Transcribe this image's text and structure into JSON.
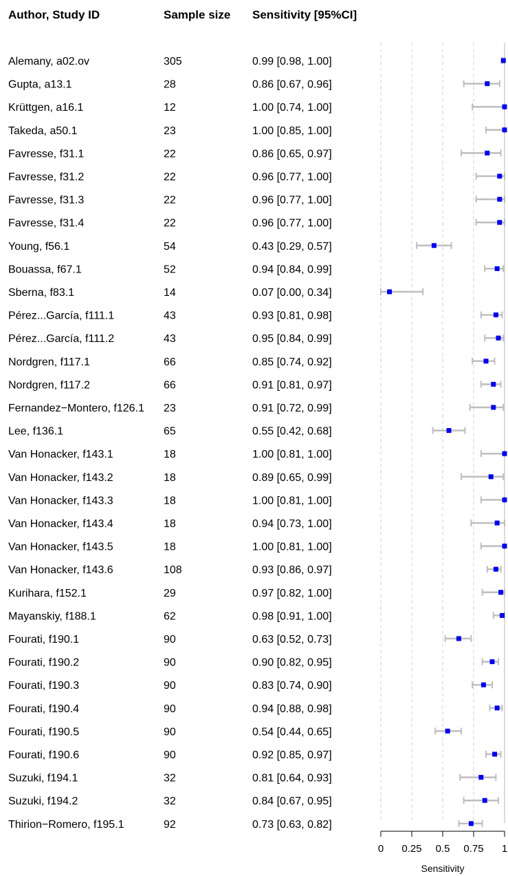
{
  "chart_data": {
    "type": "forest",
    "headers": {
      "study": "Author, Study ID",
      "n": "Sample size",
      "estimate": "Sensitivity [95%CI]"
    },
    "xlabel": "Sensitivity",
    "xlim": [
      0,
      1
    ],
    "xticks": [
      0,
      0.25,
      0.5,
      0.75,
      1
    ],
    "xtick_labels": [
      "0",
      "0.25",
      "0.5",
      "0.75",
      "1"
    ],
    "grid": "dashed vertical at ticks",
    "colors": {
      "point": "#0000ee",
      "ci": "#bebebe",
      "grid": "#d3d3d3"
    },
    "rows": [
      {
        "study": "Alemany, a02.ov",
        "n": "305",
        "label": "0.99 [0.98, 1.00]",
        "est": 0.99,
        "lo": 0.98,
        "hi": 1.0
      },
      {
        "study": "Gupta, a13.1",
        "n": "28",
        "label": "0.86 [0.67, 0.96]",
        "est": 0.86,
        "lo": 0.67,
        "hi": 0.96
      },
      {
        "study": "Krüttgen, a16.1",
        "n": "12",
        "label": "1.00 [0.74, 1.00]",
        "est": 1.0,
        "lo": 0.74,
        "hi": 1.0
      },
      {
        "study": "Takeda, a50.1",
        "n": "23",
        "label": "1.00 [0.85, 1.00]",
        "est": 1.0,
        "lo": 0.85,
        "hi": 1.0
      },
      {
        "study": "Favresse, f31.1",
        "n": "22",
        "label": "0.86 [0.65, 0.97]",
        "est": 0.86,
        "lo": 0.65,
        "hi": 0.97
      },
      {
        "study": "Favresse, f31.2",
        "n": "22",
        "label": "0.96 [0.77, 1.00]",
        "est": 0.96,
        "lo": 0.77,
        "hi": 1.0
      },
      {
        "study": "Favresse, f31.3",
        "n": "22",
        "label": "0.96 [0.77, 1.00]",
        "est": 0.96,
        "lo": 0.77,
        "hi": 1.0
      },
      {
        "study": "Favresse, f31.4",
        "n": "22",
        "label": "0.96 [0.77, 1.00]",
        "est": 0.96,
        "lo": 0.77,
        "hi": 1.0
      },
      {
        "study": "Young, f56.1",
        "n": "54",
        "label": "0.43 [0.29, 0.57]",
        "est": 0.43,
        "lo": 0.29,
        "hi": 0.57
      },
      {
        "study": "Bouassa, f67.1",
        "n": "52",
        "label": "0.94 [0.84, 0.99]",
        "est": 0.94,
        "lo": 0.84,
        "hi": 0.99
      },
      {
        "study": "Sberna, f83.1",
        "n": "14",
        "label": "0.07 [0.00, 0.34]",
        "est": 0.07,
        "lo": 0.0,
        "hi": 0.34
      },
      {
        "study": "Pérez...García, f111.1",
        "n": "43",
        "label": "0.93 [0.81, 0.98]",
        "est": 0.93,
        "lo": 0.81,
        "hi": 0.98
      },
      {
        "study": "Pérez...García, f111.2",
        "n": "43",
        "label": "0.95 [0.84, 0.99]",
        "est": 0.95,
        "lo": 0.84,
        "hi": 0.99
      },
      {
        "study": "Nordgren, f117.1",
        "n": "66",
        "label": "0.85 [0.74, 0.92]",
        "est": 0.85,
        "lo": 0.74,
        "hi": 0.92
      },
      {
        "study": "Nordgren, f117.2",
        "n": "66",
        "label": "0.91 [0.81, 0.97]",
        "est": 0.91,
        "lo": 0.81,
        "hi": 0.97
      },
      {
        "study": "Fernandez−Montero, f126.1",
        "n": "23",
        "label": "0.91 [0.72, 0.99]",
        "est": 0.91,
        "lo": 0.72,
        "hi": 0.99
      },
      {
        "study": "Lee, f136.1",
        "n": "65",
        "label": "0.55 [0.42, 0.68]",
        "est": 0.55,
        "lo": 0.42,
        "hi": 0.68
      },
      {
        "study": "Van Honacker, f143.1",
        "n": "18",
        "label": "1.00 [0.81, 1.00]",
        "est": 1.0,
        "lo": 0.81,
        "hi": 1.0
      },
      {
        "study": "Van Honacker, f143.2",
        "n": "18",
        "label": "0.89 [0.65, 0.99]",
        "est": 0.89,
        "lo": 0.65,
        "hi": 0.99
      },
      {
        "study": "Van Honacker, f143.3",
        "n": "18",
        "label": "1.00 [0.81, 1.00]",
        "est": 1.0,
        "lo": 0.81,
        "hi": 1.0
      },
      {
        "study": "Van Honacker, f143.4",
        "n": "18",
        "label": "0.94 [0.73, 1.00]",
        "est": 0.94,
        "lo": 0.73,
        "hi": 1.0
      },
      {
        "study": "Van Honacker, f143.5",
        "n": "18",
        "label": "1.00 [0.81, 1.00]",
        "est": 1.0,
        "lo": 0.81,
        "hi": 1.0
      },
      {
        "study": "Van Honacker, f143.6",
        "n": "108",
        "label": "0.93 [0.86, 0.97]",
        "est": 0.93,
        "lo": 0.86,
        "hi": 0.97
      },
      {
        "study": "Kurihara, f152.1",
        "n": "29",
        "label": "0.97 [0.82, 1.00]",
        "est": 0.97,
        "lo": 0.82,
        "hi": 1.0
      },
      {
        "study": "Mayanskiy, f188.1",
        "n": "62",
        "label": "0.98 [0.91, 1.00]",
        "est": 0.98,
        "lo": 0.91,
        "hi": 1.0
      },
      {
        "study": "Fourati, f190.1",
        "n": "90",
        "label": "0.63 [0.52, 0.73]",
        "est": 0.63,
        "lo": 0.52,
        "hi": 0.73
      },
      {
        "study": "Fourati, f190.2",
        "n": "90",
        "label": "0.90 [0.82, 0.95]",
        "est": 0.9,
        "lo": 0.82,
        "hi": 0.95
      },
      {
        "study": "Fourati, f190.3",
        "n": "90",
        "label": "0.83 [0.74, 0.90]",
        "est": 0.83,
        "lo": 0.74,
        "hi": 0.9
      },
      {
        "study": "Fourati, f190.4",
        "n": "90",
        "label": "0.94 [0.88, 0.98]",
        "est": 0.94,
        "lo": 0.88,
        "hi": 0.98
      },
      {
        "study": "Fourati, f190.5",
        "n": "90",
        "label": "0.54 [0.44, 0.65]",
        "est": 0.54,
        "lo": 0.44,
        "hi": 0.65
      },
      {
        "study": "Fourati, f190.6",
        "n": "90",
        "label": "0.92 [0.85, 0.97]",
        "est": 0.92,
        "lo": 0.85,
        "hi": 0.97
      },
      {
        "study": "Suzuki, f194.1",
        "n": "32",
        "label": "0.81 [0.64, 0.93]",
        "est": 0.81,
        "lo": 0.64,
        "hi": 0.93
      },
      {
        "study": "Suzuki, f194.2",
        "n": "32",
        "label": "0.84 [0.67, 0.95]",
        "est": 0.84,
        "lo": 0.67,
        "hi": 0.95
      },
      {
        "study": "Thirion−Romero, f195.1",
        "n": "92",
        "label": "0.73 [0.63, 0.82]",
        "est": 0.73,
        "lo": 0.63,
        "hi": 0.82
      }
    ]
  }
}
